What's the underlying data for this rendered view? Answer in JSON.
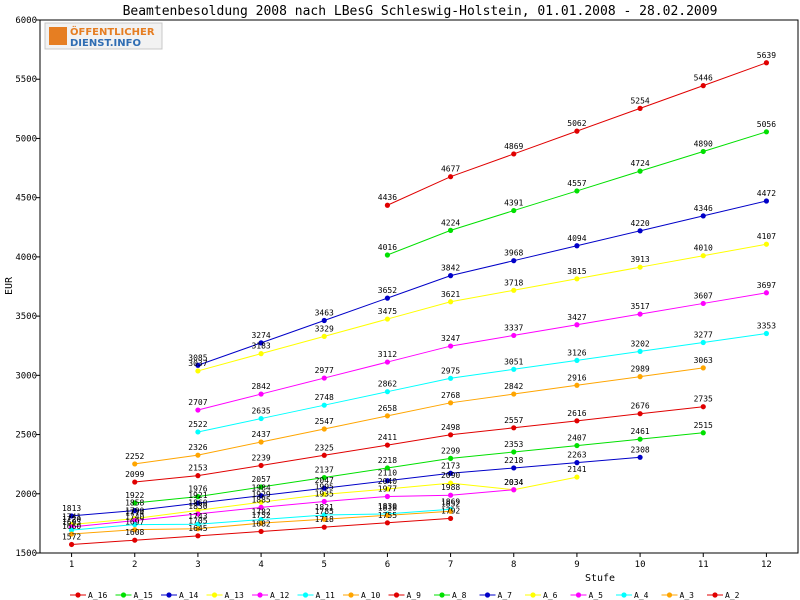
{
  "chart_data": {
    "type": "line",
    "title": "Beamtenbesoldung 2008 nach LBesG Schleswig-Holstein, 01.01.2008 - 28.02.2009",
    "xlabel": "Stufe",
    "ylabel": "EUR",
    "xlim": [
      0.5,
      12.5
    ],
    "ylim": [
      1500,
      6000
    ],
    "x_ticks": [
      1,
      2,
      3,
      4,
      5,
      6,
      7,
      8,
      9,
      10,
      11,
      12
    ],
    "y_ticks": [
      1500,
      2000,
      2500,
      3000,
      3500,
      4000,
      4500,
      5000,
      5500,
      6000
    ],
    "grid": false,
    "legend_position": "bottom",
    "series": [
      {
        "name": "A_16",
        "color": "#e00000",
        "x": [
          6,
          7,
          8,
          9,
          10,
          11,
          12
        ],
        "values": [
          4436,
          4677,
          4869,
          5062,
          5254,
          5446,
          5639
        ]
      },
      {
        "name": "A_15",
        "color": "#00e000",
        "x": [
          6,
          7,
          8,
          9,
          10,
          11,
          12
        ],
        "values": [
          4016,
          4224,
          4391,
          4557,
          4724,
          4890,
          5056
        ]
      },
      {
        "name": "A_14",
        "color": "#0000c8",
        "x": [
          3,
          4,
          5,
          6,
          7,
          8,
          9,
          10,
          11,
          12
        ],
        "values": [
          3085,
          3274,
          3463,
          3652,
          3842,
          3968,
          4094,
          4220,
          4346,
          4472
        ]
      },
      {
        "name": "A_13",
        "color": "#ffff00",
        "x": [
          3,
          4,
          5,
          6,
          7,
          8,
          9,
          10,
          11,
          12
        ],
        "values": [
          3037,
          3183,
          3329,
          3475,
          3621,
          3718,
          3815,
          3913,
          4010,
          4107
        ]
      },
      {
        "name": "A_12",
        "color": "#ff00ff",
        "x": [
          3,
          4,
          5,
          6,
          7,
          8,
          9,
          10,
          11,
          12
        ],
        "values": [
          2707,
          2842,
          2977,
          3112,
          3247,
          3337,
          3427,
          3517,
          3607,
          3697
        ]
      },
      {
        "name": "A_11",
        "color": "#00ffff",
        "x": [
          3,
          4,
          5,
          6,
          7,
          8,
          9,
          10,
          11,
          12
        ],
        "values": [
          2522,
          2635,
          2748,
          2862,
          2975,
          3051,
          3126,
          3202,
          3277,
          3353
        ]
      },
      {
        "name": "A_10",
        "color": "#ffa500",
        "x": [
          2,
          3,
          4,
          5,
          6,
          7,
          8,
          9,
          10,
          11
        ],
        "values": [
          2252,
          2326,
          2437,
          2547,
          2658,
          2768,
          2842,
          2916,
          2989,
          3063
        ]
      },
      {
        "name": "A_9",
        "color": "#e00000",
        "x": [
          2,
          3,
          4,
          5,
          6,
          7,
          8,
          9,
          10,
          11
        ],
        "values": [
          2099,
          2153,
          2239,
          2325,
          2411,
          2498,
          2557,
          2616,
          2676,
          2735
        ]
      },
      {
        "name": "A_8",
        "color": "#00e000",
        "x": [
          2,
          3,
          4,
          5,
          6,
          7,
          8,
          9,
          10,
          11
        ],
        "values": [
          1922,
          1976,
          2057,
          2137,
          2218,
          2299,
          2353,
          2407,
          2461,
          2515
        ]
      },
      {
        "name": "A_7",
        "color": "#0000c8",
        "x": [
          1,
          2,
          3,
          4,
          5,
          6,
          7,
          8,
          9,
          10
        ],
        "values": [
          1813,
          1858,
          1921,
          1984,
          2047,
          2110,
          2173,
          2218,
          2263,
          2308
        ]
      },
      {
        "name": "A_6",
        "color": "#ffff00",
        "x": [
          1,
          2,
          3,
          4,
          5,
          6,
          7,
          8,
          9
        ],
        "values": [
          1741,
          1790,
          1860,
          1929,
          1995,
          2040,
          2090,
          2034,
          2141
        ]
      },
      {
        "name": "A_5",
        "color": "#ff00ff",
        "x": [
          1,
          2,
          3,
          4,
          5,
          6,
          7,
          8
        ],
        "values": [
          1720,
          1774,
          1830,
          1885,
          1935,
          1977,
          1988,
          2034
        ]
      },
      {
        "name": "A_4",
        "color": "#00ffff",
        "x": [
          1,
          2,
          3,
          4,
          5,
          6,
          7
        ],
        "values": [
          1693,
          1740,
          1743,
          1782,
          1821,
          1830,
          1869
        ]
      },
      {
        "name": "A_3",
        "color": "#ffa500",
        "x": [
          1,
          2,
          3,
          4,
          5,
          6,
          7
        ],
        "values": [
          1660,
          1697,
          1705,
          1752,
          1785,
          1818,
          1852
        ]
      },
      {
        "name": "A_2",
        "color": "#e00000",
        "x": [
          1,
          2,
          3,
          4,
          5,
          6,
          7
        ],
        "values": [
          1572,
          1608,
          1645,
          1682,
          1718,
          1755,
          1792
        ]
      }
    ]
  },
  "logo": {
    "line1": "ÖFFENTLICHER",
    "line2": "DIENST.INFO"
  }
}
